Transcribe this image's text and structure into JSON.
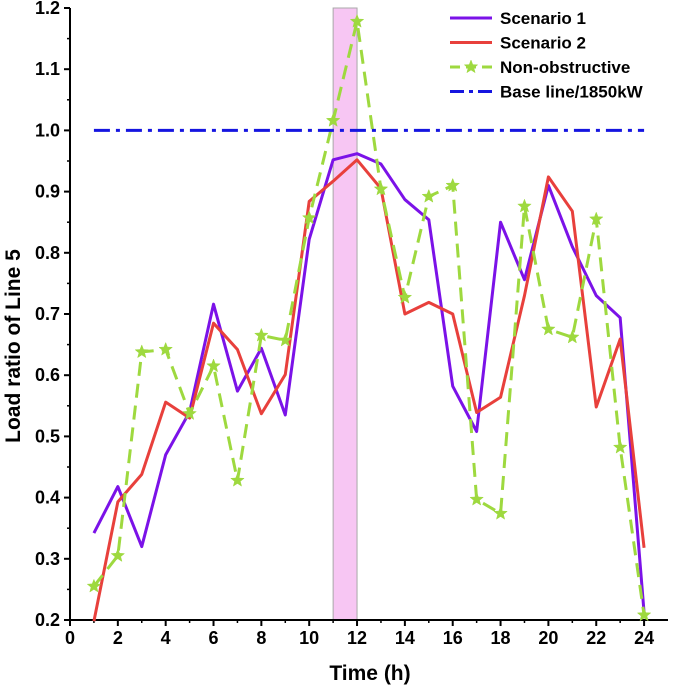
{
  "chart_data": {
    "type": "line",
    "title": "",
    "xlabel": "Time (h)",
    "ylabel": "Load ratio of Line 5",
    "xlim": [
      0,
      25
    ],
    "ylim": [
      0.2,
      1.2
    ],
    "xticks": [
      0,
      2,
      4,
      6,
      8,
      10,
      12,
      14,
      16,
      18,
      20,
      22,
      24
    ],
    "yticks": [
      0.2,
      0.3,
      0.4,
      0.5,
      0.6,
      0.7,
      0.8,
      0.9,
      1.0,
      1.1,
      1.2
    ],
    "xtick_labels": [
      "0",
      "2",
      "4",
      "6",
      "8",
      "10",
      "12",
      "14",
      "16",
      "18",
      "20",
      "22",
      "24"
    ],
    "ytick_labels": [
      "0.2",
      "0.3",
      "0.4",
      "0.5",
      "0.6",
      "0.7",
      "0.8",
      "0.9",
      "1.0",
      "1.1",
      "1.2"
    ],
    "x": [
      1,
      2,
      3,
      4,
      5,
      6,
      7,
      8,
      9,
      10,
      11,
      12,
      13,
      14,
      15,
      16,
      17,
      18,
      19,
      20,
      21,
      22,
      23,
      24
    ],
    "highlight_band": {
      "x_start": 11,
      "x_end": 12,
      "color": "#f7c6f3"
    },
    "legend_position": "top-right",
    "series": [
      {
        "name": "Scenario 1",
        "color": "#7b12e8",
        "style": "solid",
        "marker": "none",
        "values": [
          0.342,
          0.418,
          0.32,
          0.47,
          0.54,
          0.716,
          0.574,
          0.644,
          0.535,
          0.822,
          0.952,
          0.962,
          0.945,
          0.887,
          0.854,
          0.582,
          0.508,
          0.85,
          0.756,
          0.91,
          0.81,
          0.73,
          0.694,
          0.212
        ]
      },
      {
        "name": "Scenario 2",
        "color": "#e8403c",
        "style": "solid",
        "marker": "none",
        "values": [
          0.198,
          0.393,
          0.438,
          0.556,
          0.53,
          0.685,
          0.642,
          0.537,
          0.601,
          0.884,
          0.917,
          0.952,
          0.905,
          0.7,
          0.719,
          0.7,
          0.539,
          0.564,
          0.73,
          0.924,
          0.868,
          0.548,
          0.659,
          0.318
        ]
      },
      {
        "name": "Non-obstructive",
        "color": "#9ed93f",
        "style": "dashed",
        "marker": "star",
        "values": [
          0.255,
          0.305,
          0.638,
          0.642,
          0.537,
          0.615,
          0.428,
          0.665,
          0.657,
          0.857,
          1.016,
          1.178,
          0.904,
          0.727,
          0.892,
          0.91,
          0.397,
          0.374,
          0.876,
          0.675,
          0.662,
          0.855,
          0.482,
          0.208
        ]
      },
      {
        "name": "Base line/1850kW",
        "color": "#1515e0",
        "style": "dashdot",
        "marker": "none",
        "values": [
          1.0,
          1.0,
          1.0,
          1.0,
          1.0,
          1.0,
          1.0,
          1.0,
          1.0,
          1.0,
          1.0,
          1.0,
          1.0,
          1.0,
          1.0,
          1.0,
          1.0,
          1.0,
          1.0,
          1.0,
          1.0,
          1.0,
          1.0,
          1.0
        ]
      }
    ]
  }
}
